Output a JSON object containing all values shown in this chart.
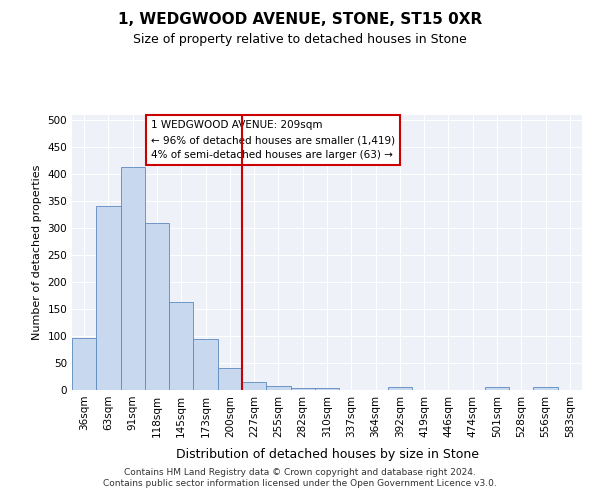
{
  "title1": "1, WEDGWOOD AVENUE, STONE, ST15 0XR",
  "title2": "Size of property relative to detached houses in Stone",
  "xlabel": "Distribution of detached houses by size in Stone",
  "ylabel": "Number of detached properties",
  "bar_labels": [
    "36sqm",
    "63sqm",
    "91sqm",
    "118sqm",
    "145sqm",
    "173sqm",
    "200sqm",
    "227sqm",
    "255sqm",
    "282sqm",
    "310sqm",
    "337sqm",
    "364sqm",
    "392sqm",
    "419sqm",
    "446sqm",
    "474sqm",
    "501sqm",
    "528sqm",
    "556sqm",
    "583sqm"
  ],
  "bar_values": [
    97,
    342,
    413,
    309,
    163,
    94,
    41,
    15,
    7,
    4,
    3,
    0,
    0,
    5,
    0,
    0,
    0,
    5,
    0,
    5,
    0
  ],
  "bar_color": "#c8d8ee",
  "bar_edge_color": "#5b8abf",
  "vline_color": "#cc0000",
  "vline_x": 6.5,
  "annotation_line1": "1 WEDGWOOD AVENUE: 209sqm",
  "annotation_line2": "← 96% of detached houses are smaller (1,419)",
  "annotation_line3": "4% of semi-detached houses are larger (63) →",
  "annotation_box_facecolor": "#ffffff",
  "annotation_box_edgecolor": "#cc0000",
  "footer1": "Contains HM Land Registry data © Crown copyright and database right 2024.",
  "footer2": "Contains public sector information licensed under the Open Government Licence v3.0.",
  "ylim": [
    0,
    510
  ],
  "yticks": [
    0,
    50,
    100,
    150,
    200,
    250,
    300,
    350,
    400,
    450,
    500
  ],
  "background_color": "#eef2f8",
  "grid_color": "#ffffff",
  "title1_fontsize": 11,
  "title2_fontsize": 9,
  "xlabel_fontsize": 9,
  "ylabel_fontsize": 8,
  "tick_fontsize": 7.5,
  "footer_fontsize": 6.5
}
